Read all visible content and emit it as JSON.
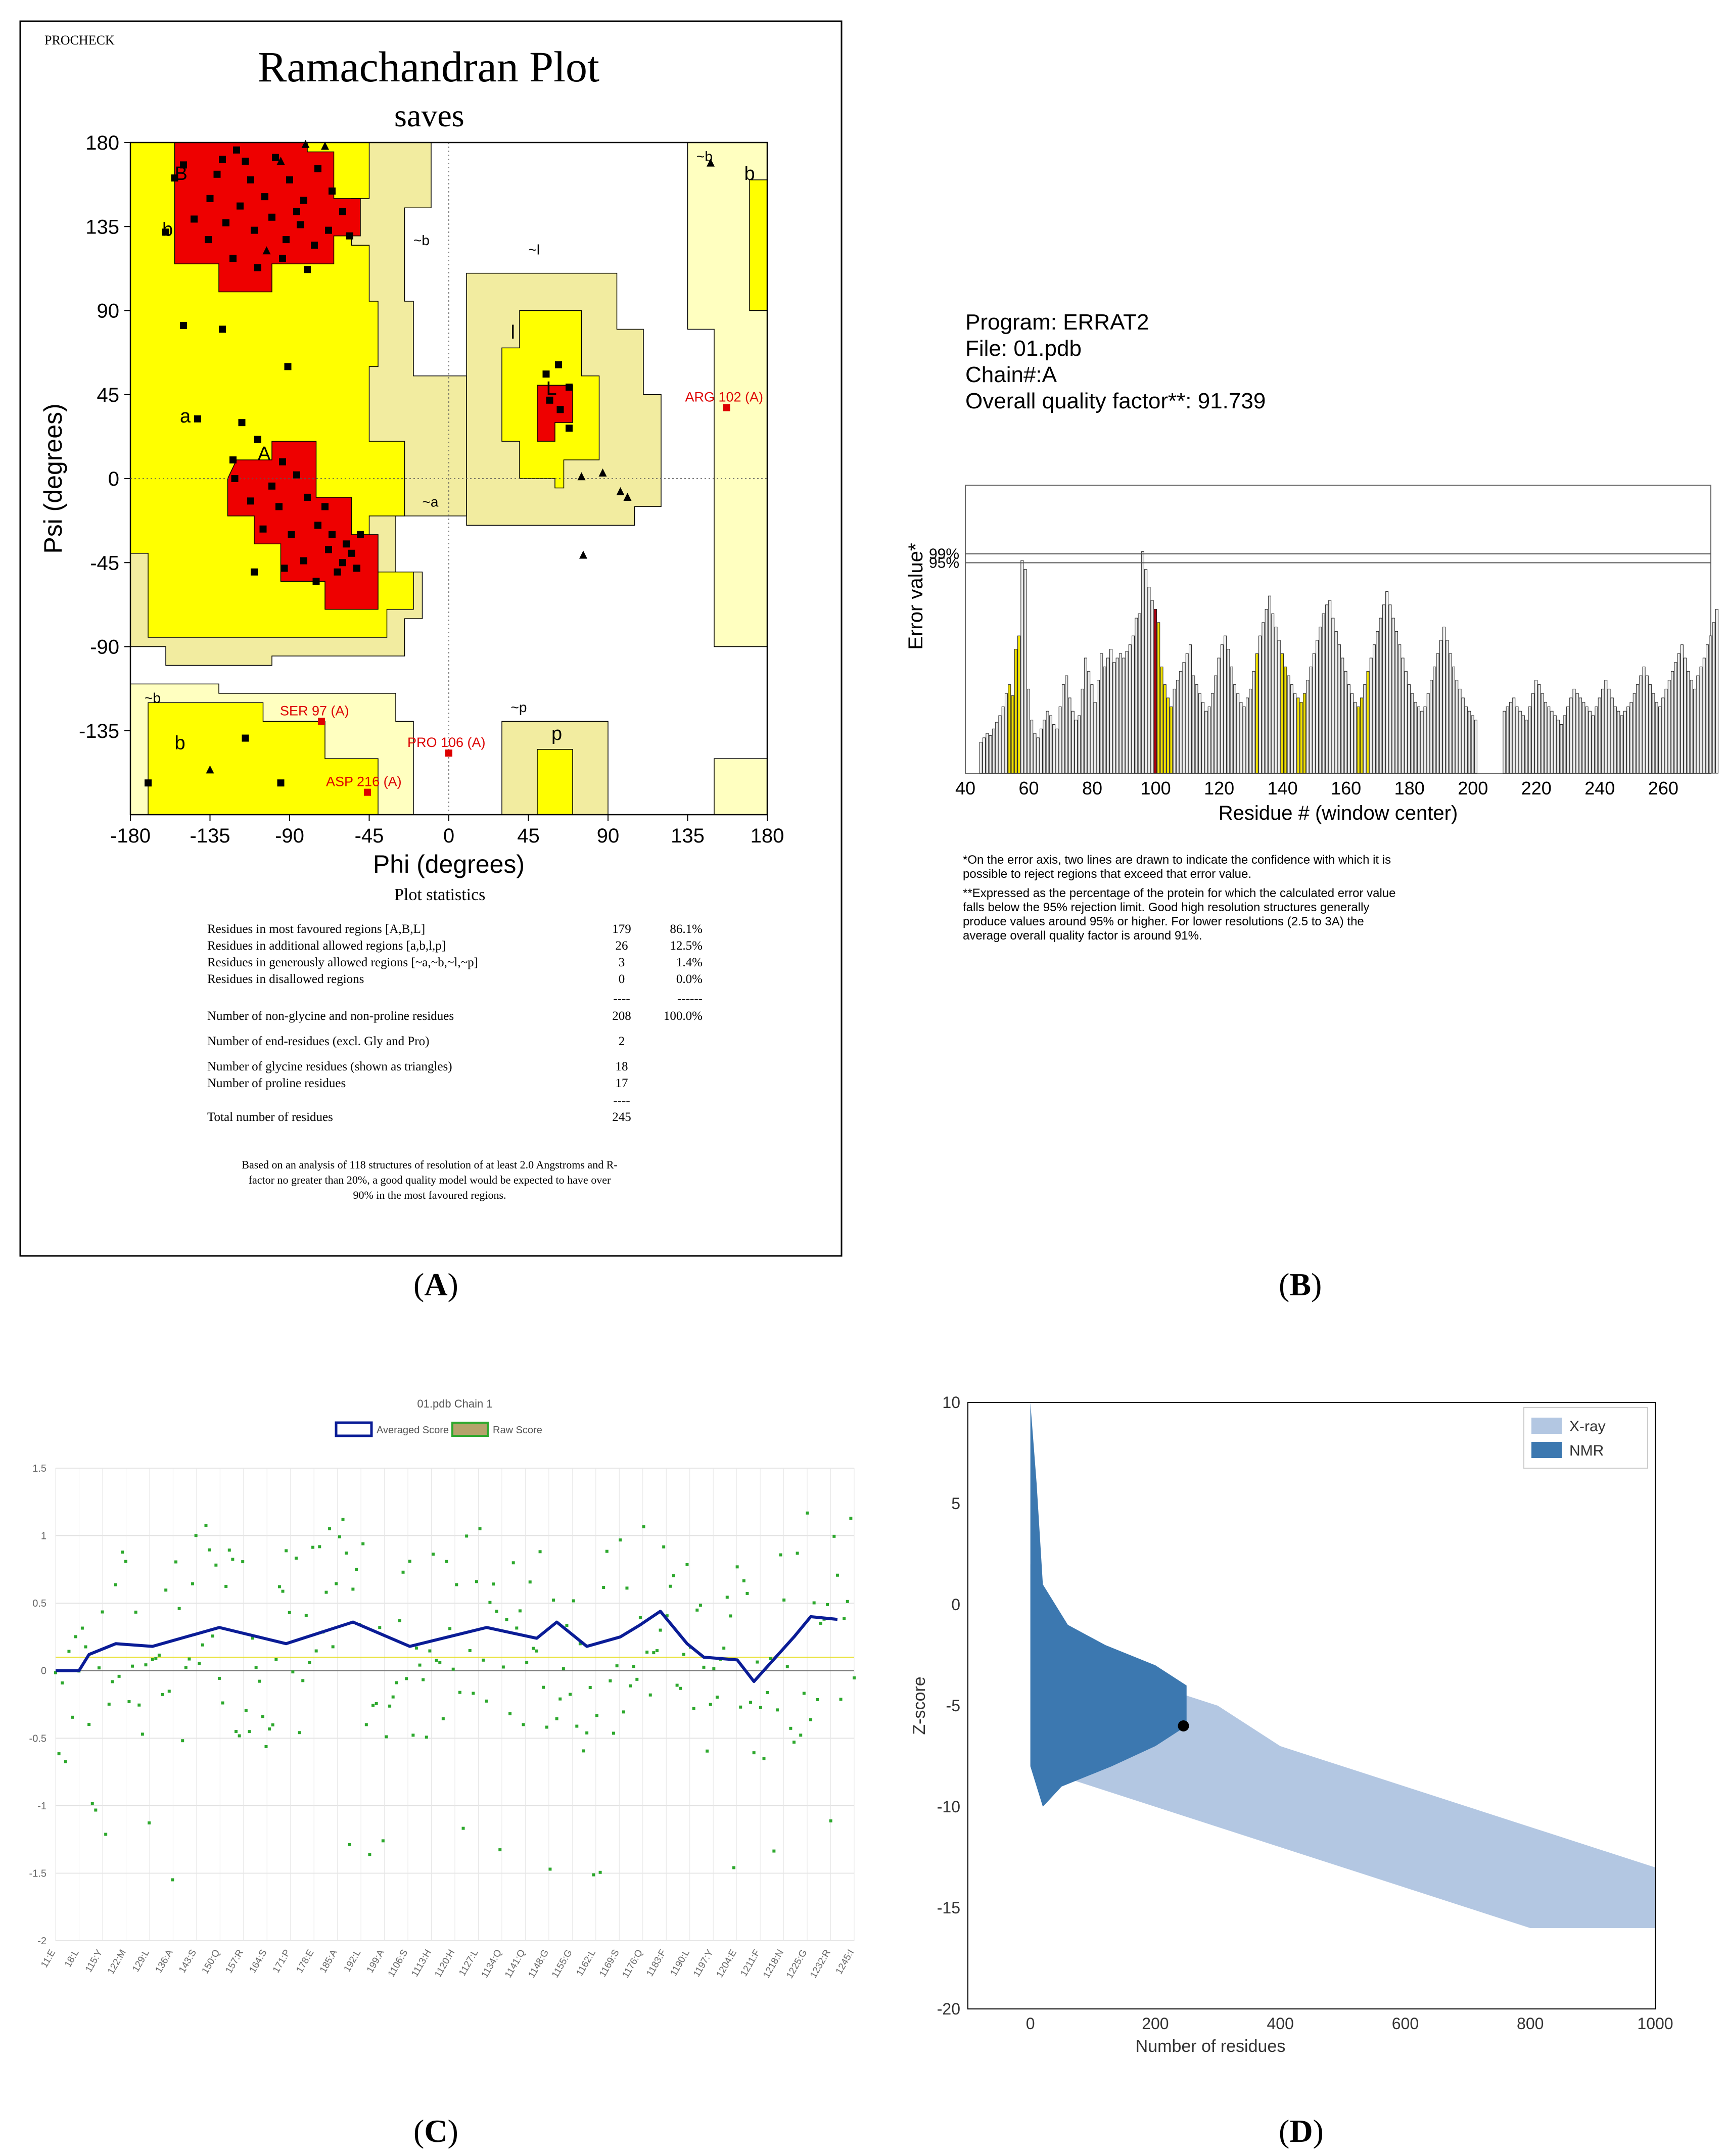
{
  "panel_labels": {
    "a": "A",
    "b": "B",
    "c": "C",
    "d": "D"
  },
  "panel_a": {
    "brand": "PROCHECK",
    "title": "Ramachandran Plot",
    "subtitle": "saves",
    "stats_title": "Plot statistics",
    "stats_rows": [
      {
        "label": "Residues in most favoured regions  [A,B,L]",
        "count": "179",
        "pct": "86.1%"
      },
      {
        "label": "Residues in additional allowed regions  [a,b,l,p]",
        "count": "26",
        "pct": "12.5%"
      },
      {
        "label": "Residues in generously allowed regions  [~a,~b,~l,~p]",
        "count": "3",
        "pct": "1.4%"
      },
      {
        "label": "Residues in disallowed regions",
        "count": "0",
        "pct": "0.0%"
      },
      {
        "label": "",
        "count": "----",
        "pct": "------"
      },
      {
        "label": "Number of non-glycine and non-proline residues",
        "count": "208",
        "pct": "100.0%"
      },
      {
        "label": "Number of end-residues (excl. Gly and Pro)",
        "count": "2",
        "pct": ""
      },
      {
        "label": "Number of glycine residues (shown as triangles)",
        "count": "18",
        "pct": ""
      },
      {
        "label": "Number of proline residues",
        "count": "17",
        "pct": ""
      },
      {
        "label": "",
        "count": "----",
        "pct": ""
      },
      {
        "label": "Total number of residues",
        "count": "245",
        "pct": ""
      }
    ],
    "note": "Based on an analysis of 118 structures of resolution of at least 2.0 Angstroms and R-factor no greater than 20%, a good quality model would be expected to have over 90% in the most favoured regions."
  },
  "panel_b": {
    "program_line": "Program: ERRAT2",
    "file_line": "File: 01.pdb",
    "chain_line": "Chain#:A",
    "quality_line": "Overall quality factor**: 91.739",
    "note1": "*On the error axis, two lines are drawn to indicate the confidence with which it is possible to reject regions that exceed that error value.",
    "note2": "**Expressed as the percentage of the protein for which the calculated error value falls below the 95% rejection limit.  Good high resolution structures generally produce values around 95% or higher.  For lower resolutions (2.5 to 3A) the average overall quality factor is around 91%."
  },
  "panel_c": {
    "title": "01.pdb Chain 1",
    "legend_avg": "Averaged Score",
    "legend_raw": "Raw Score"
  },
  "panel_d": {
    "legend_xray": "X-ray",
    "legend_nmr": "NMR"
  },
  "colors": {
    "core_red": "#ee0000",
    "allowed_yellow": "#ffff00",
    "generous_khaki": "#f2eca0",
    "pale_yellow": "#ffffc0",
    "errat_grey": "#ececec",
    "errat_yellow": "#f0e000",
    "errat_red": "#b00010",
    "navy": "#0a1c96",
    "green": "#2da82d",
    "xray_blue": "#b3c7e2",
    "nmr_blue": "#3c78b0"
  },
  "chart_data": [
    {
      "type": "scatter",
      "title": "Ramachandran Plot",
      "subtitle": "saves",
      "xlabel": "Phi (degrees)",
      "ylabel": "Psi (degrees)",
      "xlim": [
        -180,
        180
      ],
      "ylim": [
        -180,
        180
      ],
      "xticks": [
        -180,
        -135,
        -90,
        -45,
        0,
        45,
        90,
        135,
        180
      ],
      "yticks": [
        180,
        135,
        90,
        45,
        0,
        -45,
        -90,
        -135
      ],
      "region_labels": [
        "B",
        "b",
        "~b",
        "A",
        "a",
        "~a",
        "l",
        "~l",
        "L",
        "p",
        "~p",
        "~b",
        "b",
        "~b",
        "b"
      ],
      "labeled_outliers": [
        {
          "name": "ARG 102 (A)",
          "phi": 157,
          "psi": 38
        },
        {
          "name": "SER 97 (A)",
          "phi": -72,
          "psi": -130
        },
        {
          "name": "PRO 106 (A)",
          "phi": 0,
          "psi": -147
        },
        {
          "name": "ASP 216 (A)",
          "phi": -46,
          "psi": -168
        }
      ],
      "glycines": [
        {
          "phi": -81,
          "psi": 179
        },
        {
          "phi": -103,
          "psi": 122
        },
        {
          "phi": 75,
          "psi": 1
        },
        {
          "phi": 87,
          "psi": 3
        },
        {
          "phi": 97,
          "psi": -7
        },
        {
          "phi": 101,
          "psi": -10
        },
        {
          "phi": 76,
          "psi": -41
        },
        {
          "phi": 148,
          "psi": 169
        },
        {
          "phi": -135,
          "psi": -156
        },
        {
          "phi": -70,
          "psi": 178
        },
        {
          "phi": -95,
          "psi": 170
        }
      ],
      "residues": [
        {
          "phi": -155,
          "psi": 161
        },
        {
          "phi": -150,
          "psi": 168
        },
        {
          "phi": -135,
          "psi": 150
        },
        {
          "phi": -128,
          "psi": 171
        },
        {
          "phi": -120,
          "psi": 176
        },
        {
          "phi": -112,
          "psi": 160
        },
        {
          "phi": -104,
          "psi": 151
        },
        {
          "phi": -98,
          "psi": 172
        },
        {
          "phi": -90,
          "psi": 160
        },
        {
          "phi": -82,
          "psi": 149
        },
        {
          "phi": -74,
          "psi": 166
        },
        {
          "phi": -66,
          "psi": 154
        },
        {
          "phi": -60,
          "psi": 143
        },
        {
          "phi": -144,
          "psi": 139
        },
        {
          "phi": -136,
          "psi": 128
        },
        {
          "phi": -126,
          "psi": 137
        },
        {
          "phi": -118,
          "psi": 146
        },
        {
          "phi": -110,
          "psi": 133
        },
        {
          "phi": -100,
          "psi": 140
        },
        {
          "phi": -92,
          "psi": 128
        },
        {
          "phi": -84,
          "psi": 136
        },
        {
          "phi": -76,
          "psi": 125
        },
        {
          "phi": -68,
          "psi": 133
        },
        {
          "phi": -122,
          "psi": 118
        },
        {
          "phi": -108,
          "psi": 113
        },
        {
          "phi": -94,
          "psi": 118
        },
        {
          "phi": -80,
          "psi": 112
        },
        {
          "phi": -131,
          "psi": 163
        },
        {
          "phi": -115,
          "psi": 170
        },
        {
          "phi": -86,
          "psi": 143
        },
        {
          "phi": -160,
          "psi": 132
        },
        {
          "phi": -56,
          "psi": 130
        },
        {
          "phi": -150,
          "psi": 82
        },
        {
          "phi": -128,
          "psi": 80
        },
        {
          "phi": -91,
          "psi": 60
        },
        {
          "phi": -142,
          "psi": 32
        },
        {
          "phi": -117,
          "psi": 30
        },
        {
          "phi": -108,
          "psi": 21
        },
        {
          "phi": -122,
          "psi": 10
        },
        {
          "phi": -94,
          "psi": 9
        },
        {
          "phi": -121,
          "psi": 0
        },
        {
          "phi": -100,
          "psi": -4
        },
        {
          "phi": -86,
          "psi": 2
        },
        {
          "phi": -112,
          "psi": -12
        },
        {
          "phi": -96,
          "psi": -15
        },
        {
          "phi": -80,
          "psi": -10
        },
        {
          "phi": -105,
          "psi": -27
        },
        {
          "phi": -89,
          "psi": -30
        },
        {
          "phi": -74,
          "psi": -25
        },
        {
          "phi": -82,
          "psi": -44
        },
        {
          "phi": -68,
          "psi": -38
        },
        {
          "phi": -60,
          "psi": -45
        },
        {
          "phi": -55,
          "psi": -40
        },
        {
          "phi": -63,
          "psi": -50
        },
        {
          "phi": -58,
          "psi": -35
        },
        {
          "phi": -52,
          "psi": -48
        },
        {
          "phi": -66,
          "psi": -30
        },
        {
          "phi": -75,
          "psi": -55
        },
        {
          "phi": -93,
          "psi": -48
        },
        {
          "phi": -110,
          "psi": -50
        },
        {
          "phi": -70,
          "psi": -15
        },
        {
          "phi": -50,
          "psi": -30
        },
        {
          "phi": 62,
          "psi": 61
        },
        {
          "phi": 55,
          "psi": 56
        },
        {
          "phi": 57,
          "psi": 42
        },
        {
          "phi": 63,
          "psi": 37
        },
        {
          "phi": 68,
          "psi": 49
        },
        {
          "phi": 68,
          "psi": 27
        },
        {
          "phi": -95,
          "psi": -163
        },
        {
          "phi": -115,
          "psi": -139
        },
        {
          "phi": -170,
          "psi": -163
        }
      ]
    },
    {
      "type": "bar",
      "xlabel": "Residue # (window center)",
      "ylabel": "Error value*",
      "xlim": [
        40,
        275
      ],
      "xticks": [
        40,
        60,
        80,
        100,
        120,
        140,
        160,
        180,
        200,
        220,
        240,
        260
      ],
      "thresholds": [
        {
          "label": "95%",
          "value": 95
        },
        {
          "label": "99%",
          "value": 99
        }
      ],
      "x_start": 45,
      "values": [
        14,
        16,
        18,
        17,
        20,
        23,
        26,
        30,
        36,
        40,
        35,
        56,
        62,
        96,
        92,
        38,
        24,
        18,
        16,
        20,
        24,
        28,
        26,
        22,
        20,
        30,
        40,
        44,
        34,
        28,
        24,
        26,
        38,
        52,
        46,
        40,
        32,
        42,
        54,
        48,
        52,
        56,
        50,
        52,
        54,
        52,
        55,
        58,
        62,
        70,
        72,
        100,
        92,
        84,
        78,
        74,
        68,
        48,
        40,
        34,
        30,
        38,
        42,
        46,
        50,
        54,
        58,
        44,
        40,
        36,
        32,
        28,
        30,
        36,
        44,
        52,
        58,
        62,
        56,
        48,
        40,
        36,
        32,
        30,
        34,
        38,
        46,
        54,
        62,
        68,
        74,
        80,
        72,
        66,
        60,
        54,
        48,
        44,
        40,
        36,
        34,
        32,
        36,
        42,
        48,
        54,
        60,
        66,
        72,
        76,
        78,
        70,
        64,
        58,
        52,
        46,
        40,
        36,
        32,
        30,
        34,
        40,
        46,
        52,
        58,
        64,
        70,
        76,
        82,
        76,
        70,
        64,
        58,
        52,
        46,
        40,
        36,
        32,
        30,
        28,
        30,
        36,
        42,
        48,
        54,
        60,
        66,
        60,
        54,
        48,
        42,
        38,
        34,
        30,
        28,
        26,
        24,
        0,
        0,
        0,
        0,
        0,
        0,
        0,
        0,
        28,
        30,
        32,
        34,
        30,
        28,
        26,
        24,
        30,
        36,
        42,
        40,
        36,
        32,
        30,
        28,
        26,
        24,
        22,
        26,
        30,
        34,
        38,
        36,
        34,
        32,
        30,
        28,
        26,
        30,
        34,
        38,
        42,
        38,
        34,
        30,
        28,
        26,
        28,
        30,
        32,
        36,
        40,
        44,
        48,
        44,
        40,
        36,
        32,
        30,
        34,
        38,
        42,
        46,
        50,
        54,
        58,
        52,
        46,
        42,
        38,
        44,
        48,
        52,
        58,
        62,
        68,
        74,
        80,
        90
      ],
      "highlight_yellow_x": [
        54,
        55,
        56,
        57,
        101,
        102,
        103,
        104,
        105,
        132,
        140,
        141,
        145,
        146,
        147,
        164,
        165,
        167
      ],
      "highlight_red_x": [
        100
      ]
    },
    {
      "type": "line",
      "title": "01.pdb Chain 1",
      "series": [
        {
          "name": "Averaged Score",
          "x": [
            11,
            18,
            21,
            29,
            40,
            60,
            80,
            100,
            117,
            140,
            155,
            161,
            170,
            180,
            186,
            192,
            200,
            205,
            215,
            220,
            232,
            237,
            245
          ],
          "values": [
            0.0,
            0.0,
            0.12,
            0.2,
            0.18,
            0.32,
            0.2,
            0.36,
            0.18,
            0.32,
            0.24,
            0.36,
            0.18,
            0.25,
            0.34,
            0.44,
            0.2,
            0.1,
            0.08,
            -0.08,
            0.25,
            0.4,
            0.38
          ]
        },
        {
          "name": "Raw Score",
          "x": "one point per residue"
        }
      ],
      "ylim": [
        -2.0,
        1.5
      ],
      "yticks": [
        1.5,
        1.0,
        0.5,
        0,
        -0.5,
        -1.0,
        -1.5,
        -2.0
      ],
      "threshold": 0.1,
      "xticks": [
        "11:E",
        "18:L",
        "115:Y",
        "122:M",
        "129:L",
        "136:A",
        "143:S",
        "150:Q",
        "157:R",
        "164:S",
        "171:P",
        "178:E",
        "185:A",
        "192:L",
        "199:A",
        "1106:S",
        "1113:H",
        "1120:H",
        "1127:L",
        "1134:Q",
        "1141:Q",
        "1148:G",
        "1155:G",
        "1162:L",
        "1169:S",
        "1176:Q",
        "1183:F",
        "1190:L",
        "1197:Y",
        "1204:E",
        "1211:F",
        "1218:N",
        "1225:G",
        "1232:R",
        "1245:I"
      ]
    },
    {
      "type": "scatter",
      "xlabel": "Number of residues",
      "ylabel": "Z-score",
      "xlim": [
        -100,
        1000
      ],
      "ylim": [
        -20,
        10
      ],
      "xticks": [
        0,
        200,
        400,
        600,
        800,
        1000
      ],
      "yticks": [
        10,
        5,
        0,
        -5,
        -10,
        -15,
        -20
      ],
      "series": [
        {
          "name": "X-ray"
        },
        {
          "name": "NMR"
        }
      ],
      "highlight_point": {
        "x": 245,
        "y": -6.0
      }
    }
  ]
}
